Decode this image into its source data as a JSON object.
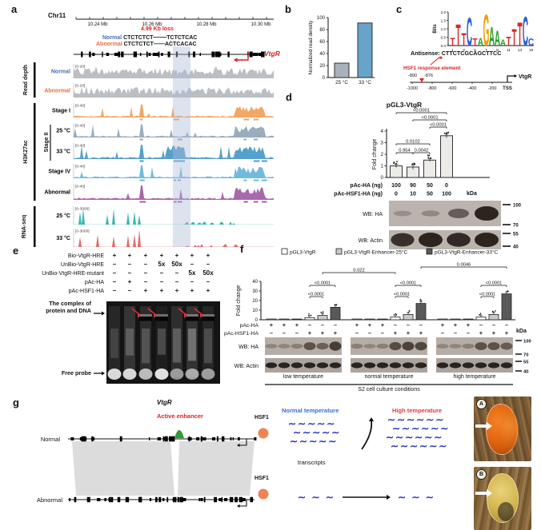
{
  "panel_letters": {
    "a": "a",
    "b": "b",
    "c": "c",
    "d": "d",
    "e": "e",
    "f": "f",
    "g": "g"
  },
  "a": {
    "chrom": "Chr11",
    "ruler_ticks": [
      "10.24 Mb",
      "10.26 Mb",
      "10.28 Mb",
      "10.30 Mb"
    ],
    "loss": "4.99 Kb loss",
    "seq": {
      "normal_label": "Normal",
      "normal": "CTCTCTCT┄┄┄┄TCTCTCAC",
      "abnormal_label": "Abnormal",
      "abnormal": "CTCTCTCT——ACTCACAC"
    },
    "gene": "VtgR",
    "highlight_color": "rgba(175,185,216,0.42)",
    "groups": [
      {
        "name": "Read depth",
        "tracks": [
          {
            "label": "Normal",
            "label_color": "#4a6fb5",
            "range": "[0-20]",
            "color": "#b7bbbf",
            "kind": "cov",
            "seed": 11
          },
          {
            "label": "Abnormal",
            "label_color": "#e2703a",
            "range": "[0-20]",
            "color": "#b7bbbf",
            "kind": "cov",
            "seed": 23
          }
        ]
      },
      {
        "name": "H3K27ac",
        "sub_bracket": "Stage II",
        "tracks": [
          {
            "label": "Stage I",
            "label_color": "#000",
            "range": "[0-40]",
            "color": "#f0a35e",
            "kind": "peak",
            "seed": 5
          },
          {
            "label": "25 °C",
            "label_color": "#000",
            "range": "[0-40]",
            "color": "#93a9ba",
            "kind": "peak",
            "seed": 7,
            "sub": true
          },
          {
            "label": "33 °C",
            "label_color": "#000",
            "range": "[0-40]",
            "color": "#4d9bc9",
            "kind": "peak33",
            "seed": 9,
            "sub": true
          },
          {
            "label": "Stage IV",
            "label_color": "#000",
            "range": "[0-40]",
            "color": "#69b6dd",
            "kind": "peak",
            "seed": 13
          },
          {
            "label": "Abnormal",
            "label_color": "#000",
            "range": "[0-40]",
            "color": "#a45fa8",
            "kind": "peak",
            "seed": 17
          }
        ]
      },
      {
        "name": "RNA-seq",
        "tracks": [
          {
            "label": "25 °C",
            "label_color": "#000",
            "range": "[0-3000]",
            "color": "#2fb3ad",
            "kind": "rna",
            "seed": 19
          },
          {
            "label": "33 °C",
            "label_color": "#000",
            "range": "[0-3000]",
            "color": "#e06060",
            "kind": "rna",
            "seed": 29
          }
        ]
      }
    ]
  },
  "c": {
    "antisense": "Antisense: CTTCTCGCAGCTTCC",
    "hre": "HSF1 response element",
    "pos_left": "-890",
    "pos_right": "-876",
    "axis_ticks": [
      "-1000",
      "-800",
      "-600",
      "-400",
      "-200"
    ],
    "tss": "TSS",
    "gene": "VtgR"
  },
  "d": {
    "title": "pGL3-VtgR",
    "kda": "kDa"
  },
  "e": {
    "rows": [
      {
        "label": "Bio-VtgR-HRE",
        "values": [
          "+",
          "+",
          "+",
          "+",
          "+",
          "+",
          "+"
        ]
      },
      {
        "label": "UnBio-VtgR-HRE",
        "values": [
          "–",
          "–",
          "–",
          "5x",
          "50x",
          "–",
          "–"
        ]
      },
      {
        "label": "UnBio-VtgR-HRE-mutant",
        "values": [
          "–",
          "–",
          "–",
          "–",
          "–",
          "5x",
          "50x"
        ]
      },
      {
        "label": "pAc-HA",
        "values": [
          "–",
          "+",
          "–",
          "–",
          "–",
          "–",
          "–"
        ]
      },
      {
        "label": "pAc-HSF1-HA",
        "values": [
          "–",
          "–",
          "+",
          "+",
          "+",
          "+",
          "+"
        ]
      }
    ],
    "complex_1": "The complex of",
    "complex_2": "protein and DNA",
    "free_probe": "Free probe",
    "arrow_lanes": [
      2,
      3,
      5,
      6
    ],
    "band_lanes": [
      2,
      3,
      5,
      6
    ]
  },
  "f": {
    "kda": "kDa",
    "wb_ha": "WB: HA",
    "wb_actin": "WB: Actin",
    "s2": "S2 cell culture conditions"
  },
  "g": {
    "gene": "VtgR",
    "enhancer": "Active enhancer",
    "hsf1": "HSF1",
    "normal": "Normal",
    "abnormal": "Abnormal",
    "normal_temp": "Normal temperature",
    "high_temp": "High temperature",
    "transcripts": "transcripts",
    "photo_a": "A",
    "photo_b": "B",
    "wave_row": "∼∼∼∼∼",
    "wave_row_long": "∼∼∼∼∼∼",
    "wave_few": "∼ ∼ ∼",
    "enhancer_color": "#2f9e2f",
    "hsf1_color": "#ef8354",
    "normal_temp_color": "#3a6bd6",
    "high_temp_color": "#e23a3a",
    "wave_color": "#2a35c0"
  },
  "chart_data": [
    {
      "id": "b",
      "type": "bar",
      "categories": [
        "25 °C",
        "33 °C"
      ],
      "values": [
        24,
        91
      ],
      "colors": [
        "#a9b2ba",
        "#68a3c9"
      ],
      "ylabel": "Normalized read density",
      "ylim": [
        0,
        100
      ],
      "yticks": [
        0,
        20,
        40,
        60,
        80,
        100
      ]
    },
    {
      "id": "c_logo",
      "type": "sequence-logo",
      "ylabel": "Bits",
      "ylim": [
        0,
        2
      ],
      "yticks": [
        "0.0",
        "0.5",
        "1.0",
        "1.5",
        "2.0"
      ],
      "xticks": [
        1,
        3,
        5,
        7,
        9,
        11,
        13,
        15
      ],
      "letter_colors": {
        "T": "#d42a2a",
        "C": "#2a5fd4",
        "G": "#f0a000",
        "A": "#28a028"
      },
      "positions": [
        {
          "letter": "T",
          "bits": 0.5
        },
        {
          "letter": "T",
          "bits": 1.35
        },
        {
          "letter": "T",
          "bits": 0.8
        },
        {
          "letter": "C",
          "bits": 1.8
        },
        {
          "letter": "T",
          "bits": 0.45
        },
        {
          "letter": "A",
          "bits": 0.5
        },
        {
          "letter": "G",
          "bits": 2.0
        },
        {
          "letter": "A",
          "bits": 1.2
        },
        {
          "letter": "A",
          "bits": 0.95
        },
        {
          "letter": "A",
          "bits": 0.4
        },
        {
          "letter": "T",
          "bits": 0.55
        },
        {
          "letter": "T",
          "bits": 1.05
        },
        {
          "letter": "T",
          "bits": 1.5
        },
        {
          "letter": "C",
          "bits": 1.85
        },
        {
          "letter": "C",
          "bits": 0.45
        }
      ]
    },
    {
      "id": "d",
      "type": "bar",
      "ylabel": "Fold change",
      "ylim": [
        0,
        4
      ],
      "yticks": [
        0,
        1,
        2,
        3,
        4
      ],
      "values": [
        1.0,
        0.9,
        1.5,
        3.6
      ],
      "errors": [
        0.15,
        0.2,
        0.12,
        0.18
      ],
      "bar_color": "#ecebe6",
      "brackets": [
        {
          "label": "<0.0001",
          "a": 0,
          "b": 3,
          "y": 141
        },
        {
          "label": "<0.0001",
          "a": 1,
          "b": 3,
          "y": 150
        },
        {
          "label": "<0.0001",
          "a": 2,
          "b": 3,
          "y": 159
        },
        {
          "label": "0.0102",
          "a": 0,
          "b": 2,
          "y": 180
        },
        {
          "label": "0.954",
          "a": 0,
          "b": 1,
          "y": 191
        },
        {
          "label": "0.0042",
          "a": 1,
          "b": 2,
          "y": 191
        }
      ],
      "rows": [
        {
          "label": "pAc-HA (ng)",
          "values": [
            "100",
            "90",
            "50",
            "0"
          ]
        },
        {
          "label": "pAc-HSF1-HA (ng)",
          "values": [
            "0",
            "10",
            "50",
            "100"
          ]
        }
      ],
      "wb": [
        {
          "label": "WB: HA",
          "bands": [
            0.06,
            0.12,
            0.5,
            1
          ],
          "marks": [
            [
              "100",
              256
            ],
            [
              "70",
              281
            ]
          ]
        },
        {
          "label": "WB: Actin",
          "bands": [
            0.9,
            1,
            0.95,
            1
          ],
          "marks": [
            [
              "55",
              292
            ],
            [
              "40",
              308
            ]
          ]
        }
      ]
    },
    {
      "id": "f",
      "type": "grouped-bar",
      "ylabel": "Fold change",
      "ylim": [
        0,
        40
      ],
      "yticks": [
        0,
        10,
        20,
        30,
        40
      ],
      "legend": [
        {
          "label": "pGL3-VtgR",
          "color": "#ffffff"
        },
        {
          "label": "pGL3-VtgR-Enhancer-25°C",
          "color": "#c9c9c9"
        },
        {
          "label": "pGL3-VtgR-Enhancer-33°C",
          "color": "#595959"
        }
      ],
      "groups": [
        "low temperature",
        "normal temperature",
        "high temperature"
      ],
      "series_colors": [
        "#ffffff",
        "#c9c9c9",
        "#595959",
        "#ffffff",
        "#c9c9c9",
        "#595959"
      ],
      "values": [
        [
          0.8,
          0.8,
          0.8,
          2.2,
          4.5,
          13
        ],
        [
          0.8,
          0.8,
          0.8,
          2.8,
          5.5,
          17
        ],
        [
          0.8,
          0.8,
          0.8,
          2.8,
          5.5,
          27
        ]
      ],
      "rows": [
        {
          "label": "pAc-HA",
          "pattern": [
            "+",
            "+",
            "+",
            "–",
            "–",
            "–"
          ]
        },
        {
          "label": "pAc-HSF1-HA",
          "pattern": [
            "–",
            "–",
            "–",
            "+",
            "+",
            "+"
          ]
        }
      ],
      "within_pvals": {
        "upper": "<0.0001",
        "lower": "<0.0001"
      },
      "across_pvals": [
        {
          "label": "0.022"
        },
        {
          "label": "0.0046"
        },
        {
          "label": "<0.0001"
        }
      ],
      "ha_bands": [
        [
          0.1,
          0.1,
          0.15,
          0.6,
          0.45,
          0.8
        ],
        [
          0.15,
          0.1,
          0.15,
          0.65,
          0.75,
          0.7
        ],
        [
          0.1,
          0.1,
          0.15,
          0.6,
          0.6,
          0.5
        ]
      ],
      "wb_marks": [
        [
          "100",
          426
        ],
        [
          "70",
          443
        ],
        [
          "55",
          452
        ],
        [
          "40",
          464
        ]
      ]
    }
  ]
}
